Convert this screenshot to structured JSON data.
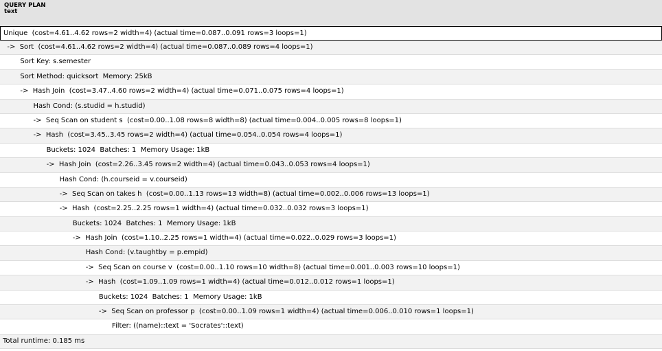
{
  "header": {
    "column_name": "QUERY PLAN",
    "column_type": "text"
  },
  "rows": [
    "Unique  (cost=4.61..4.62 rows=2 width=4) (actual time=0.087..0.091 rows=3 loops=1)",
    "  ->  Sort  (cost=4.61..4.62 rows=2 width=4) (actual time=0.087..0.089 rows=4 loops=1)",
    "        Sort Key: s.semester",
    "        Sort Method: quicksort  Memory: 25kB",
    "        ->  Hash Join  (cost=3.47..4.60 rows=2 width=4) (actual time=0.071..0.075 rows=4 loops=1)",
    "              Hash Cond: (s.studid = h.studid)",
    "              ->  Seq Scan on student s  (cost=0.00..1.08 rows=8 width=8) (actual time=0.004..0.005 rows=8 loops=1)",
    "              ->  Hash  (cost=3.45..3.45 rows=2 width=4) (actual time=0.054..0.054 rows=4 loops=1)",
    "                    Buckets: 1024  Batches: 1  Memory Usage: 1kB",
    "                    ->  Hash Join  (cost=2.26..3.45 rows=2 width=4) (actual time=0.043..0.053 rows=4 loops=1)",
    "                          Hash Cond: (h.courseid = v.courseid)",
    "                          ->  Seq Scan on takes h  (cost=0.00..1.13 rows=13 width=8) (actual time=0.002..0.006 rows=13 loops=1)",
    "                          ->  Hash  (cost=2.25..2.25 rows=1 width=4) (actual time=0.032..0.032 rows=3 loops=1)",
    "                                Buckets: 1024  Batches: 1  Memory Usage: 1kB",
    "                                ->  Hash Join  (cost=1.10..2.25 rows=1 width=4) (actual time=0.022..0.029 rows=3 loops=1)",
    "                                      Hash Cond: (v.taughtby = p.empid)",
    "                                      ->  Seq Scan on course v  (cost=0.00..1.10 rows=10 width=8) (actual time=0.001..0.003 rows=10 loops=1)",
    "                                      ->  Hash  (cost=1.09..1.09 rows=1 width=4) (actual time=0.012..0.012 rows=1 loops=1)",
    "                                            Buckets: 1024  Batches: 1  Memory Usage: 1kB",
    "                                            ->  Seq Scan on professor p  (cost=0.00..1.09 rows=1 width=4) (actual time=0.006..0.010 rows=1 loops=1)",
    "                                                  Filter: ((name)::text = 'Socrates'::text)",
    "Total runtime: 0.185 ms"
  ]
}
